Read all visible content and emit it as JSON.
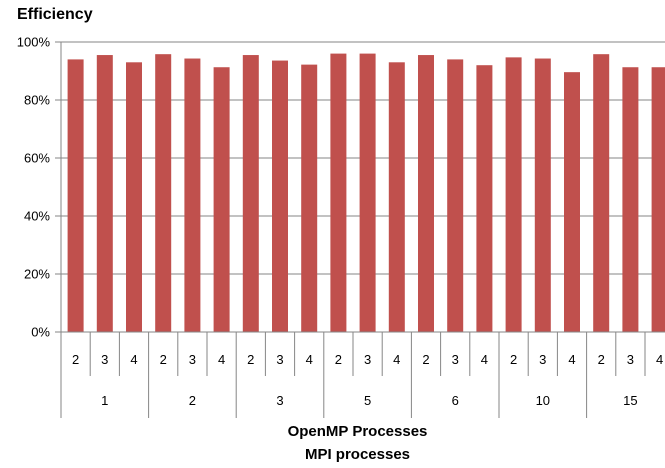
{
  "chart_data": {
    "type": "bar",
    "title": "Efficiency",
    "xlabel": "OpenMP Processes",
    "xlabel2": "MPI processes",
    "ylabel": "",
    "ylim": [
      0,
      100
    ],
    "yticks": [
      "0%",
      "20%",
      "40%",
      "60%",
      "80%",
      "100%"
    ],
    "grid": true,
    "groups": [
      {
        "label": "1",
        "categories": [
          "2",
          "3",
          "4"
        ],
        "values": [
          94,
          95.5,
          93
        ]
      },
      {
        "label": "2",
        "categories": [
          "2",
          "3",
          "4"
        ],
        "values": [
          95.8,
          94.3,
          91.3
        ]
      },
      {
        "label": "3",
        "categories": [
          "2",
          "3",
          "4"
        ],
        "values": [
          95.5,
          93.6,
          92.2
        ]
      },
      {
        "label": "5",
        "categories": [
          "2",
          "3",
          "4"
        ],
        "values": [
          96,
          96,
          93
        ]
      },
      {
        "label": "6",
        "categories": [
          "2",
          "3",
          "4"
        ],
        "values": [
          95.5,
          94,
          92
        ]
      },
      {
        "label": "10",
        "categories": [
          "2",
          "3",
          "4"
        ],
        "values": [
          94.7,
          94.3,
          89.6
        ]
      },
      {
        "label": "15",
        "categories": [
          "2",
          "3",
          "4"
        ],
        "values": [
          95.8,
          91.3,
          91.3
        ]
      }
    ],
    "colors": {
      "bar": "#C0504D",
      "grid": "#868686",
      "axis": "#868686",
      "text": "#000000"
    }
  }
}
